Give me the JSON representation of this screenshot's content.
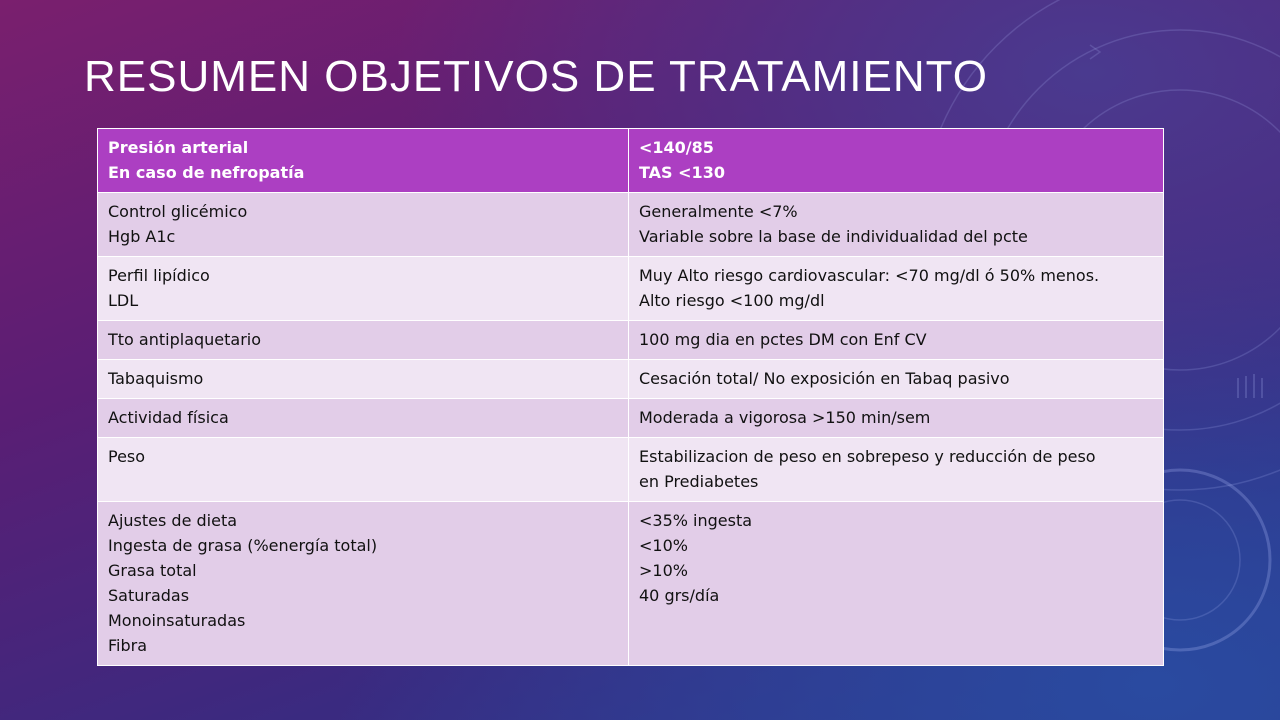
{
  "slide": {
    "title": "RESUMEN OBJETIVOS DE TRATAMIENTO"
  },
  "table": {
    "rows": [
      {
        "left": [
          "Presión arterial",
          "En caso de nefropatía"
        ],
        "right": [
          "<140/85",
          "TAS <130"
        ]
      },
      {
        "left": [
          "Control glicémico",
          "Hgb A1c"
        ],
        "right": [
          "Generalmente  <7%",
          "Variable sobre  la base de individualidad del pcte"
        ]
      },
      {
        "left": [
          "Perfil lipídico",
          "LDL"
        ],
        "right": [
          "Muy Alto riesgo cardiovascular: <70 mg/dl ó 50% menos.",
          "Alto riesgo <100 mg/dl"
        ]
      },
      {
        "left": [
          "Tto antiplaquetario"
        ],
        "right": [
          "100 mg dia en pctes DM con Enf CV"
        ]
      },
      {
        "left": [
          "Tabaquismo"
        ],
        "right": [
          "Cesación total/ No exposición en Tabaq pasivo"
        ]
      },
      {
        "left": [
          "Actividad física"
        ],
        "right": [
          "Moderada a vigorosa >150 min/sem"
        ]
      },
      {
        "left": [
          "Peso"
        ],
        "right": [
          "Estabilizacion de peso en sobrepeso  y reducción de peso",
          "en Prediabetes"
        ]
      },
      {
        "left": [
          "Ajustes de dieta",
          "Ingesta de grasa (%energía  total)",
          "Grasa total",
          "Saturadas",
          "Monoinsaturadas",
          "Fibra"
        ],
        "right": [
          "<35% ingesta",
          "<10%",
          ">10%",
          "40 grs/día"
        ]
      }
    ]
  },
  "colors": {
    "header_row": "#ac3fc2",
    "row_odd": "#e2cde8",
    "row_even": "#f0e5f3"
  }
}
